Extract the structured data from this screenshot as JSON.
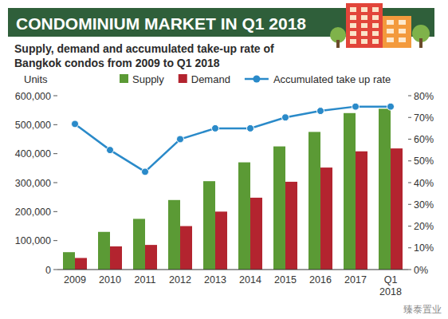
{
  "chart_data": {
    "type": "bar",
    "title": "CONDOMINIUM MARKET IN Q1 2018",
    "subtitle": "Supply, demand and accumulated take-up rate of Bangkok condos from 2009 to Q1 2018",
    "ylabel": "Units",
    "annotations": [
      "臻泰置业"
    ],
    "categories": [
      "2009",
      "2010",
      "2011",
      "2012",
      "2013",
      "2014",
      "2015",
      "2016",
      "2017",
      "Q1 2018"
    ],
    "series": [
      {
        "name": "Supply",
        "type": "bar",
        "color": "#5b9a35",
        "values": [
          60000,
          130000,
          175000,
          240000,
          305000,
          370000,
          425000,
          475000,
          540000,
          555000
        ]
      },
      {
        "name": "Demand",
        "type": "bar",
        "color": "#b3242f",
        "values": [
          40000,
          80000,
          85000,
          150000,
          200000,
          248000,
          303000,
          352000,
          408000,
          418000
        ]
      },
      {
        "name": "Accumulated take up rate",
        "type": "line",
        "axis": "y2",
        "color": "#2a8ac9",
        "marker": "circle",
        "values": [
          67,
          55,
          45,
          60,
          65,
          65,
          70,
          73,
          75,
          75
        ]
      }
    ],
    "ylim": [
      0,
      600000
    ],
    "yticks": [
      0,
      {
        "value": 100000,
        "label": "100,000"
      },
      {
        "value": 200000,
        "label": "200,000"
      },
      {
        "value": 300000,
        "label": "300,000"
      },
      {
        "value": 400000,
        "label": "400,000"
      },
      {
        "value": 500000,
        "label": "500,000"
      },
      {
        "value": 600000,
        "label": "600,000"
      }
    ],
    "y2lim": [
      0,
      80
    ],
    "y2ticks": [
      {
        "value": 0,
        "label": "0%"
      },
      {
        "value": 10,
        "label": "10%"
      },
      {
        "value": 20,
        "label": "20%"
      },
      {
        "value": 30,
        "label": "30%"
      },
      {
        "value": 40,
        "label": "40%"
      },
      {
        "value": 50,
        "label": "50%"
      },
      {
        "value": 60,
        "label": "60%"
      },
      {
        "value": 70,
        "label": "70%"
      },
      {
        "value": 80,
        "label": "80%"
      }
    ],
    "grid": false,
    "legend": "top"
  }
}
